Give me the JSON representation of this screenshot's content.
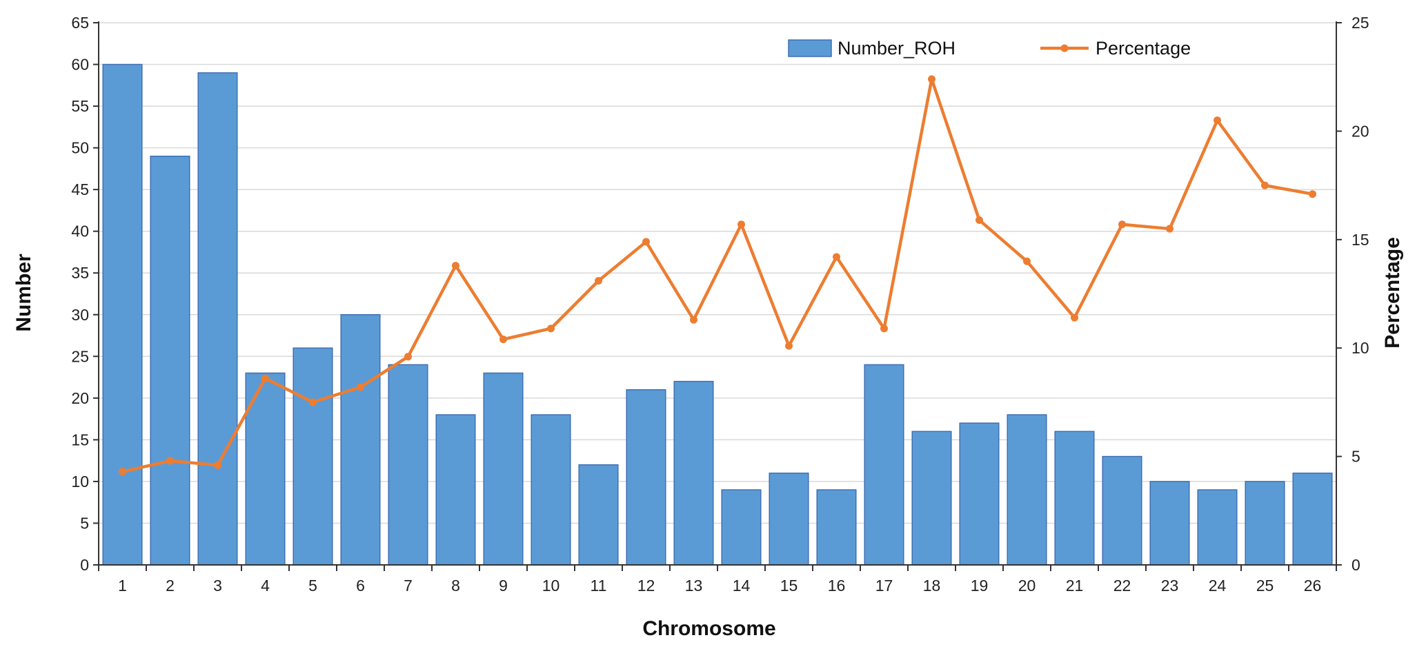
{
  "chart_data": {
    "type": "bar",
    "categories": [
      "1",
      "2",
      "3",
      "4",
      "5",
      "6",
      "7",
      "8",
      "9",
      "10",
      "11",
      "12",
      "13",
      "14",
      "15",
      "16",
      "17",
      "18",
      "19",
      "20",
      "21",
      "22",
      "23",
      "24",
      "25",
      "26"
    ],
    "series": [
      {
        "name": "Number_ROH",
        "type": "bar",
        "axis": "left",
        "color": "#5B9BD5",
        "values": [
          60,
          49,
          59,
          23,
          26,
          30,
          24,
          18,
          23,
          18,
          12,
          21,
          22,
          9,
          11,
          9,
          24,
          16,
          17,
          18,
          16,
          13,
          10,
          9,
          10,
          11
        ]
      },
      {
        "name": "Percentage",
        "type": "line",
        "axis": "right",
        "color": "#ED7D31",
        "values": [
          4.3,
          4.8,
          4.6,
          8.6,
          7.5,
          8.2,
          9.6,
          13.8,
          10.4,
          10.9,
          13.1,
          14.9,
          11.3,
          15.7,
          10.1,
          14.2,
          10.9,
          22.4,
          15.9,
          14.0,
          11.4,
          15.7,
          15.5,
          20.5,
          17.5,
          17.1
        ]
      }
    ],
    "xlabel": "Chromosome",
    "ylabel": "Number",
    "y2label": "Percentage",
    "ylim": [
      0,
      65
    ],
    "y2lim": [
      0,
      25
    ],
    "yticks": [
      0,
      5,
      10,
      15,
      20,
      25,
      30,
      35,
      40,
      45,
      50,
      55,
      60,
      65
    ],
    "y2ticks": [
      0,
      5,
      10,
      15,
      20,
      25
    ],
    "grid": true,
    "legend": "top-right"
  }
}
